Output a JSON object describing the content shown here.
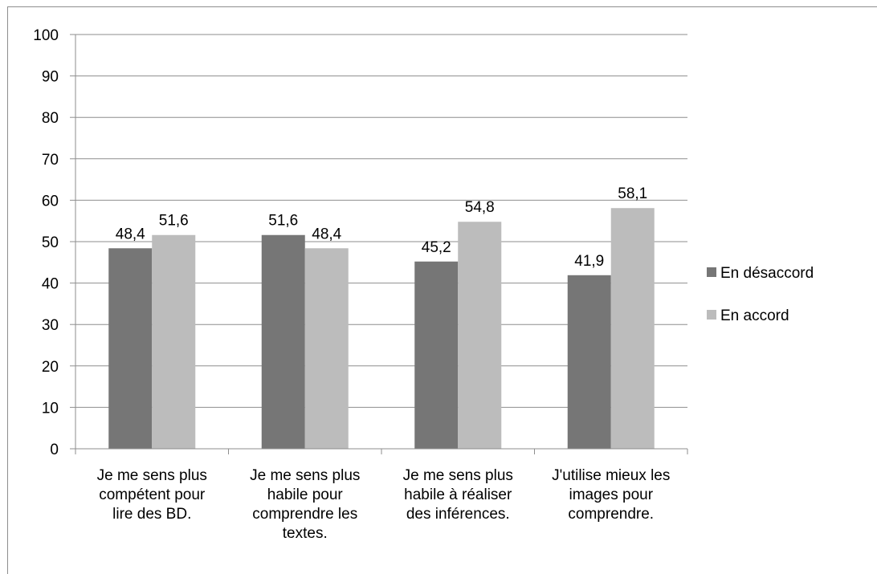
{
  "chart_data": {
    "type": "bar",
    "title": "",
    "xlabel": "",
    "ylabel": "",
    "ylim": [
      0,
      100
    ],
    "yticks": [
      0,
      10,
      20,
      30,
      40,
      50,
      60,
      70,
      80,
      90,
      100
    ],
    "grid": true,
    "legend_position": "right",
    "categories": [
      [
        "Je me sens plus",
        "compétent pour",
        "lire des BD."
      ],
      [
        "Je me sens plus",
        "habile pour",
        "comprendre les",
        "textes."
      ],
      [
        "Je me sens plus",
        "habile à réaliser",
        "des inférences."
      ],
      [
        "J'utilise mieux les",
        "images pour",
        "comprendre."
      ]
    ],
    "series": [
      {
        "name": "En désaccord",
        "color": "#767676",
        "values": [
          48.4,
          51.6,
          45.2,
          41.9
        ],
        "labels": [
          "48,4",
          "51,6",
          "45,2",
          "41,9"
        ]
      },
      {
        "name": "En accord",
        "color": "#bcbcbc",
        "values": [
          51.6,
          48.4,
          54.8,
          58.1
        ],
        "labels": [
          "51,6",
          "48,4",
          "54,8",
          "58,1"
        ]
      }
    ]
  }
}
